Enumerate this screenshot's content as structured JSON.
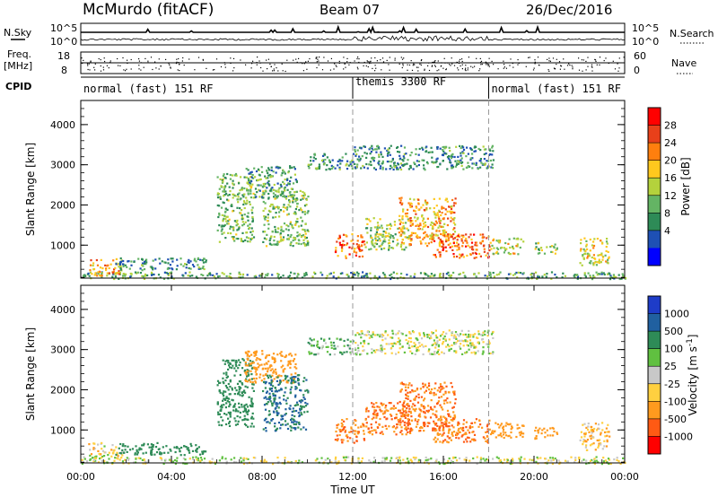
{
  "header": {
    "title": "McMurdo (fitACF)",
    "beam": "Beam 07",
    "date": "26/Dec/2016"
  },
  "top_panel": {
    "left_label": "N.Sky",
    "right_label": "N.Search",
    "left_ticks": [
      "10^5",
      "10^0"
    ],
    "right_ticks": [
      "10^5",
      "10^0"
    ]
  },
  "freq_panel": {
    "left_label_1": "Freq.",
    "left_label_2": "[MHz]",
    "left_ticks": [
      "18",
      "8"
    ],
    "right_label": "Nave",
    "right_ticks": [
      "60",
      "0"
    ]
  },
  "cpid": {
    "label": "CPID",
    "segments": [
      {
        "label": "normal (fast) 151 RF",
        "start_hour": 0,
        "end_hour": 12
      },
      {
        "label": "themis 3300 RF",
        "start_hour": 12,
        "end_hour": 18
      },
      {
        "label": "normal (fast) 151 RF",
        "start_hour": 18,
        "end_hour": 24
      }
    ]
  },
  "power_colorbar": {
    "label": "Power [dB]",
    "ticks": [
      "28",
      "24",
      "20",
      "16",
      "12",
      "8",
      "4"
    ],
    "colors": [
      "#ff0000",
      "#e8401a",
      "#ff7f0e",
      "#ffc81e",
      "#b4d23c",
      "#64b464",
      "#2e8b57",
      "#1e50b4",
      "#0000ff"
    ]
  },
  "velocity_colorbar": {
    "label": "Velocity",
    "unit": "[m s",
    "unit_sup": "-1",
    "unit_close": "]",
    "ticks": [
      "1000",
      "500",
      "100",
      "25",
      "-25",
      "-100",
      "-500",
      "-1000"
    ],
    "colors": [
      "#1e3cc8",
      "#2060a0",
      "#2e8b57",
      "#60c040",
      "#c8c8c8",
      "#ffd040",
      "#ff9a1e",
      "#ff5a14",
      "#ff0000"
    ]
  },
  "chart_data": {
    "type": "heatmap",
    "panels": [
      "power",
      "velocity"
    ],
    "x_tick_labels": [
      "00:00",
      "04:00",
      "08:00",
      "12:00",
      "16:00",
      "20:00",
      "00:00"
    ],
    "x_tick_hours": [
      0,
      4,
      8,
      12,
      16,
      20,
      24
    ],
    "xlabel": "Time UT",
    "xlim": [
      0,
      24
    ],
    "ylabel": "Slant Range [km]",
    "y_tick_labels": [
      "1000",
      "2000",
      "3000",
      "4000"
    ],
    "ylim": [
      180,
      4600
    ],
    "scatter_regions": [
      {
        "t0": 0.0,
        "t1": 24.0,
        "r0": 180,
        "r1": 350,
        "power": 10,
        "velocity": 0
      },
      {
        "t0": 0.3,
        "t1": 1.8,
        "r0": 250,
        "r1": 700,
        "power": 20,
        "velocity": -30
      },
      {
        "t0": 1.5,
        "t1": 5.5,
        "r0": 400,
        "r1": 700,
        "power": 8,
        "velocity": 200
      },
      {
        "t0": 6.0,
        "t1": 7.6,
        "r0": 1100,
        "r1": 2800,
        "power": 12,
        "velocity": 200
      },
      {
        "t0": 7.2,
        "t1": 9.5,
        "r0": 2200,
        "r1": 3000,
        "power": 10,
        "velocity": -200
      },
      {
        "t0": 8.0,
        "t1": 10.0,
        "r0": 1000,
        "r1": 2400,
        "power": 12,
        "velocity": 300
      },
      {
        "t0": 10.0,
        "t1": 12.0,
        "r0": 2900,
        "r1": 3300,
        "power": 8,
        "velocity": 50
      },
      {
        "t0": 11.2,
        "t1": 12.5,
        "r0": 700,
        "r1": 1300,
        "power": 24,
        "velocity": -300
      },
      {
        "t0": 12.0,
        "t1": 18.2,
        "r0": 2900,
        "r1": 3500,
        "power": 8,
        "velocity": 0
      },
      {
        "t0": 12.5,
        "t1": 14.5,
        "r0": 900,
        "r1": 1700,
        "power": 14,
        "velocity": -300
      },
      {
        "t0": 14.0,
        "t1": 16.5,
        "r0": 1000,
        "r1": 2200,
        "power": 20,
        "velocity": -300
      },
      {
        "t0": 15.5,
        "t1": 18.0,
        "r0": 700,
        "r1": 1300,
        "power": 24,
        "velocity": -300
      },
      {
        "t0": 18.0,
        "t1": 19.5,
        "r0": 800,
        "r1": 1200,
        "power": 16,
        "velocity": -200
      },
      {
        "t0": 20.0,
        "t1": 21.0,
        "r0": 800,
        "r1": 1100,
        "power": 14,
        "velocity": -100
      },
      {
        "t0": 22.0,
        "t1": 23.3,
        "r0": 500,
        "r1": 1200,
        "power": 16,
        "velocity": -50
      }
    ]
  }
}
